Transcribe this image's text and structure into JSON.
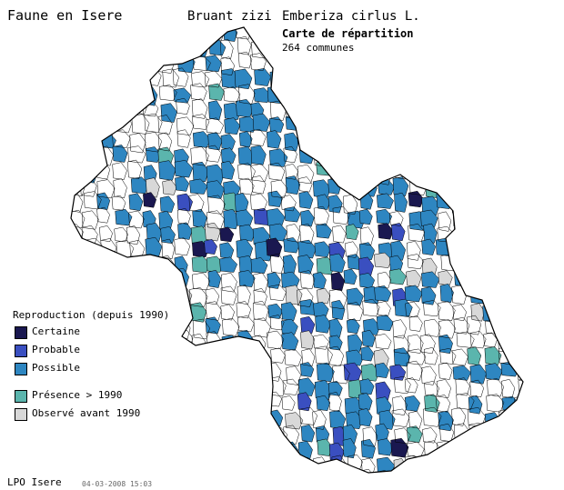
{
  "header": {
    "site_title": "Faune en Isere",
    "species_common": "Bruant zizi",
    "species_latin": "Emberiza cirlus L.",
    "map_heading": "Carte de répartition",
    "commune_count": "264 communes"
  },
  "legend": {
    "title": "Reproduction (depuis 1990)",
    "items": [
      {
        "label": "Certaine",
        "color": "#1a1850",
        "icon": "certaine-swatch"
      },
      {
        "label": "Probable",
        "color": "#3a4fc0",
        "icon": "probable-swatch"
      },
      {
        "label": "Possible",
        "color": "#2e86c1",
        "icon": "possible-swatch"
      },
      {
        "label": "Présence > 1990",
        "color": "#5bb5ad",
        "icon": "presence-swatch"
      },
      {
        "label": "Observé avant 1990",
        "color": "#d8d8d8",
        "icon": "observe-swatch"
      }
    ]
  },
  "footer": {
    "organization": "LPO Isere",
    "date": "04-03-2008 15:03"
  },
  "map": {
    "region": "Isère",
    "outline_color": "#000000",
    "empty_color": "#ffffff"
  }
}
